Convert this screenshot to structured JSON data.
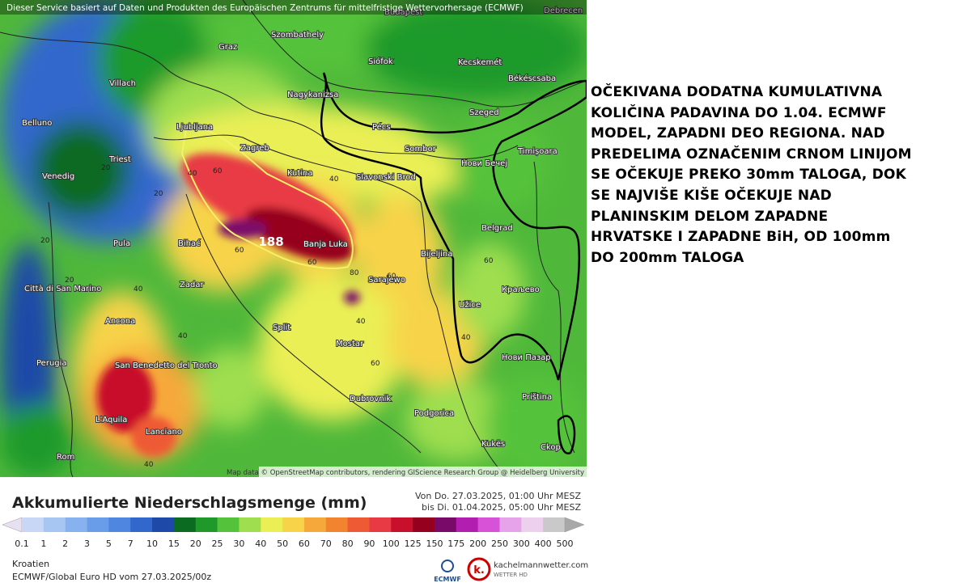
{
  "header": {
    "notice": "Dieser Service basiert auf Daten und Produkten des Europäischen Zentrums für mittelfristige Wettervorhersage (ECMWF)"
  },
  "map": {
    "max_label": "188",
    "attribution": "Map data © OpenStreetMap contributors, rendering GIScience Research Group @ Heidelberg University",
    "cities": [
      "Budapest",
      "Debrecen",
      "Graz",
      "Szombathely",
      "Siófok",
      "Kecskemét",
      "Villach",
      "Nagykanizsa",
      "Békéscsaba",
      "Belluno",
      "Ljubljana",
      "Szeged",
      "Pécs",
      "Zagreb",
      "Sombor",
      "Timișoara",
      "Venedig",
      "Triest",
      "Kutina",
      "Нови Бечеј",
      "Slavonski Brod",
      "Pula",
      "Bihać",
      "Banja Luka",
      "Bijeljina",
      "Belgrad",
      "Zadar",
      "Città di San Marino",
      "Sarajewo",
      "Užice",
      "Ancona",
      "Split",
      "Краљево",
      "Mostar",
      "Perugia",
      "San Benedetto del Tronto",
      "Нови Пазар",
      "Dubrovnik",
      "Podgorica",
      "Priština",
      "L'Aquila",
      "Lanciano",
      "Kukës",
      "Rom",
      "Ckop"
    ],
    "contour_labels": [
      "20",
      "40",
      "60",
      "40",
      "20",
      "60",
      "60",
      "80",
      "60",
      "40",
      "60",
      "20",
      "40",
      "40",
      "60",
      "40",
      "40",
      "20"
    ]
  },
  "commentary": {
    "lines": [
      "OČEKIVANA DODATNA KUMULATIVNA",
      "KOLIČINA PADAVINA DO 1.04. ECMWF",
      "MODEL, ZAPADNI DEO REGIONA. NAD",
      "PREDELIMA OZNAČENIM CRNOM LINIJOM",
      "SE OČEKUJE PREKO 30mm TALOGA, DOK",
      "SE NAJVIŠE KIŠE OČEKUJE NAD",
      "PLANINSKIM DELOM ZAPADNE",
      "HRVATSKE I ZAPADNE BiH, OD 100mm",
      "DO 200mm TALOGA"
    ]
  },
  "legend": {
    "title": "Akkumulierte Niederschlagsmenge (mm)",
    "from": "Von Do. 27.03.2025, 01:00 Uhr MESZ",
    "to": "bis Di. 01.04.2025, 05:00 Uhr MESZ",
    "levels": [
      0.1,
      1,
      2,
      3,
      5,
      7,
      10,
      15,
      20,
      25,
      30,
      40,
      50,
      60,
      70,
      80,
      90,
      100,
      125,
      150,
      175,
      200,
      250,
      300,
      400,
      500
    ],
    "colors": [
      "#e6e0f0",
      "#c7d7f5",
      "#a8c6f2",
      "#87b2ef",
      "#6a9de9",
      "#4f86e0",
      "#3268cc",
      "#1f49a8",
      "#0b6b20",
      "#1f9a2a",
      "#55c23b",
      "#9ede4f",
      "#eaef55",
      "#f7d34a",
      "#f7a83a",
      "#f2832f",
      "#ee5a34",
      "#e83a45",
      "#c8102c",
      "#96001f",
      "#7a0a6a",
      "#b21fb0",
      "#d653d8",
      "#e7a3ea",
      "#ecd0ee",
      "#c9c9c9",
      "#a8a8a8"
    ]
  },
  "footer": {
    "region": "Kroatien",
    "model": "ECMWF/Global Euro HD vom 27.03.2025/00z",
    "ecmwf": "ECMWF",
    "brand": "kachelmannwetter.com",
    "brand_sub": "WETTER HD"
  }
}
